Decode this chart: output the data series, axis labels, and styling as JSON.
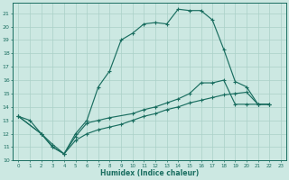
{
  "xlabel": "Humidex (Indice chaleur)",
  "bg_color": "#cce8e2",
  "grid_color": "#aad0c8",
  "line_color": "#1a6e60",
  "xlim": [
    -0.5,
    23.5
  ],
  "ylim": [
    10,
    21.8
  ],
  "yticks": [
    10,
    11,
    12,
    13,
    14,
    15,
    16,
    17,
    18,
    19,
    20,
    21
  ],
  "xticks": [
    0,
    1,
    2,
    3,
    4,
    5,
    6,
    7,
    8,
    9,
    10,
    11,
    12,
    13,
    14,
    15,
    16,
    17,
    18,
    19,
    20,
    21,
    22,
    23
  ],
  "line1_x": [
    0,
    1,
    2,
    3,
    4,
    5,
    6,
    7,
    8,
    9,
    10,
    11,
    12,
    13,
    14,
    15,
    16,
    17,
    18,
    19,
    20,
    21,
    22
  ],
  "line1_y": [
    13.3,
    13.0,
    12.0,
    11.2,
    10.5,
    12.0,
    13.0,
    15.5,
    16.7,
    19.0,
    19.5,
    20.2,
    20.3,
    20.2,
    21.3,
    21.2,
    21.2,
    20.5,
    18.3,
    15.9,
    15.5,
    14.2,
    14.2
  ],
  "line2_x": [
    0,
    2,
    3,
    4,
    5,
    6,
    7,
    8,
    10,
    11,
    12,
    13,
    14,
    15,
    16,
    17,
    18,
    19,
    20,
    21,
    22
  ],
  "line2_y": [
    13.3,
    12.0,
    11.0,
    10.5,
    11.8,
    12.8,
    13.0,
    13.2,
    13.5,
    13.8,
    14.0,
    14.3,
    14.6,
    15.0,
    15.8,
    15.8,
    16.0,
    14.2,
    14.2,
    14.2,
    14.2
  ],
  "line3_x": [
    0,
    2,
    3,
    4,
    5,
    6,
    7,
    8,
    9,
    10,
    11,
    12,
    13,
    14,
    15,
    16,
    17,
    18,
    19,
    20,
    21,
    22
  ],
  "line3_y": [
    13.3,
    12.0,
    11.0,
    10.5,
    11.5,
    12.0,
    12.3,
    12.5,
    12.7,
    13.0,
    13.3,
    13.5,
    13.8,
    14.0,
    14.3,
    14.5,
    14.7,
    14.9,
    15.0,
    15.1,
    14.2,
    14.2
  ]
}
